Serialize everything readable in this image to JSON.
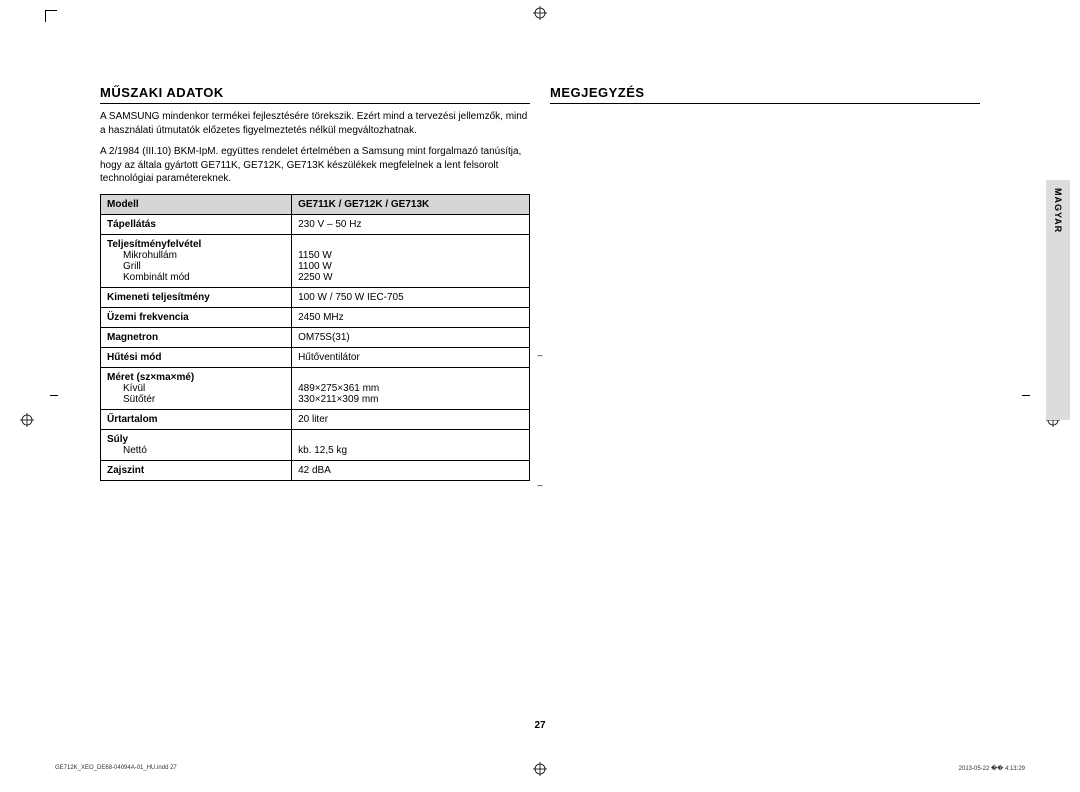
{
  "sidebar": {
    "label": "MAGYAR"
  },
  "left": {
    "title": "MŰSZAKI ADATOK",
    "para1": "A SAMSUNG mindenkor termékei fejlesztésére törekszik. Ezért mind a tervezési jellemzők, mind a használati útmutatók előzetes figyelmeztetés nélkül megváltozhatnak.",
    "para2": "A 2/1984 (III.10) BKM-IpM. együttes rendelet értelmében a Samsung mint forgalmazó tanúsítja, hogy az általa gyártott GE711K, GE712K, GE713K készülékek megfelelnek a lent felsorolt technológiai paramétereknek.",
    "table": {
      "head": {
        "c1": "Modell",
        "c2": "GE711K / GE712K / GE713K"
      },
      "rows": [
        {
          "label": "Tápellátás",
          "value": "230 V – 50 Hz"
        },
        {
          "label": "Teljesítményfelvétel",
          "subs": [
            {
              "l": "Mikrohullám",
              "v": "1150 W"
            },
            {
              "l": "Grill",
              "v": "1100 W"
            },
            {
              "l": "Kombinált mód",
              "v": "2250 W"
            }
          ]
        },
        {
          "label": "Kimeneti teljesítmény",
          "value": "100 W / 750 W IEC-705"
        },
        {
          "label": "Üzemi frekvencia",
          "value": "2450 MHz"
        },
        {
          "label": "Magnetron",
          "value": "OM75S(31)"
        },
        {
          "label": "Hűtési mód",
          "value": "Hűtőventilátor"
        },
        {
          "label": "Méret (sz×ma×mé)",
          "subs": [
            {
              "l": "Kívül",
              "v": "489×275×361 mm"
            },
            {
              "l": "Sütőtér",
              "v": "330×211×309 mm"
            }
          ]
        },
        {
          "label": "Űrtartalom",
          "value": "20 liter"
        },
        {
          "label": "Súly",
          "subs": [
            {
              "l": "Nettó",
              "v": "kb. 12,5 kg"
            }
          ]
        },
        {
          "label": "Zajszint",
          "value": "42 dBA"
        }
      ]
    }
  },
  "right": {
    "title": "MEGJEGYZÉS"
  },
  "page_number": "27",
  "footer": {
    "left": "GE712K_XEO_DE68-04094A-01_HU.indd   27",
    "right": "2013-05-22   �� 4:13:29"
  }
}
